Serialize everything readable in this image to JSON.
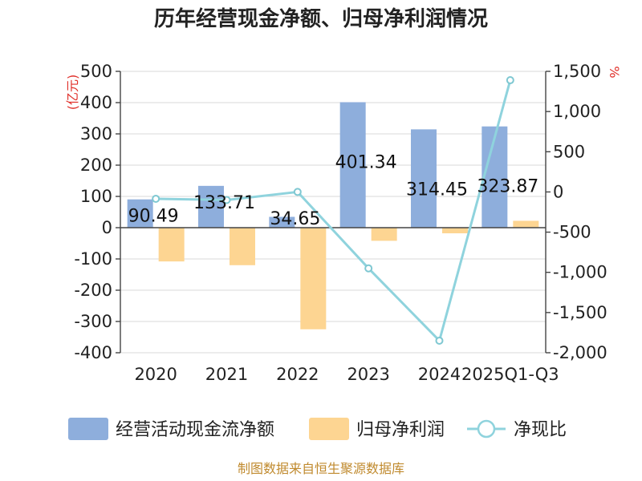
{
  "chart_data": {
    "type": "bar+line",
    "title": "历年经营现金净额、归母净利润情况",
    "categories": [
      "2020",
      "2021",
      "2022",
      "2023",
      "2024",
      "2025Q1-Q3"
    ],
    "series": [
      {
        "name": "经营活动现金流净额",
        "type": "bar",
        "axis": "left",
        "color": "#8eaedc",
        "values": [
          90.49,
          133.71,
          34.65,
          401.34,
          314.45,
          323.87
        ],
        "labels": [
          "90.49",
          "133.71",
          "34.65",
          "401.34",
          "314.45",
          "323.87"
        ]
      },
      {
        "name": "归母净利润",
        "type": "bar",
        "axis": "left",
        "color": "#fdd592",
        "values": [
          -108,
          -120,
          -325,
          -42,
          -18,
          22
        ]
      },
      {
        "name": "净现比",
        "type": "line",
        "axis": "right",
        "color": "#8fd3dd",
        "values": [
          -85,
          -100,
          0,
          -950,
          -1850,
          1390
        ]
      }
    ],
    "left_axis": {
      "unit_label": "(亿元)",
      "min": -400,
      "max": 500,
      "step": 100,
      "ticks": [
        "-400",
        "-300",
        "-200",
        "-100",
        "0",
        "100",
        "200",
        "300",
        "400",
        "500"
      ]
    },
    "right_axis": {
      "unit_label": "%",
      "min": -2000,
      "max": 1500,
      "step": 500,
      "ticks": [
        "-2,000",
        "-1,500",
        "-1,000",
        "-500",
        "0",
        "500",
        "1,000",
        "1,500"
      ]
    },
    "legend": [
      {
        "name": "经营活动现金流净额",
        "kind": "bar",
        "color": "#8eaedc"
      },
      {
        "name": "归母净利润",
        "kind": "bar",
        "color": "#fdd592"
      },
      {
        "name": "净现比",
        "kind": "line",
        "color": "#8fd3dd"
      }
    ],
    "footer": "制图数据来自恒生聚源数据库"
  }
}
